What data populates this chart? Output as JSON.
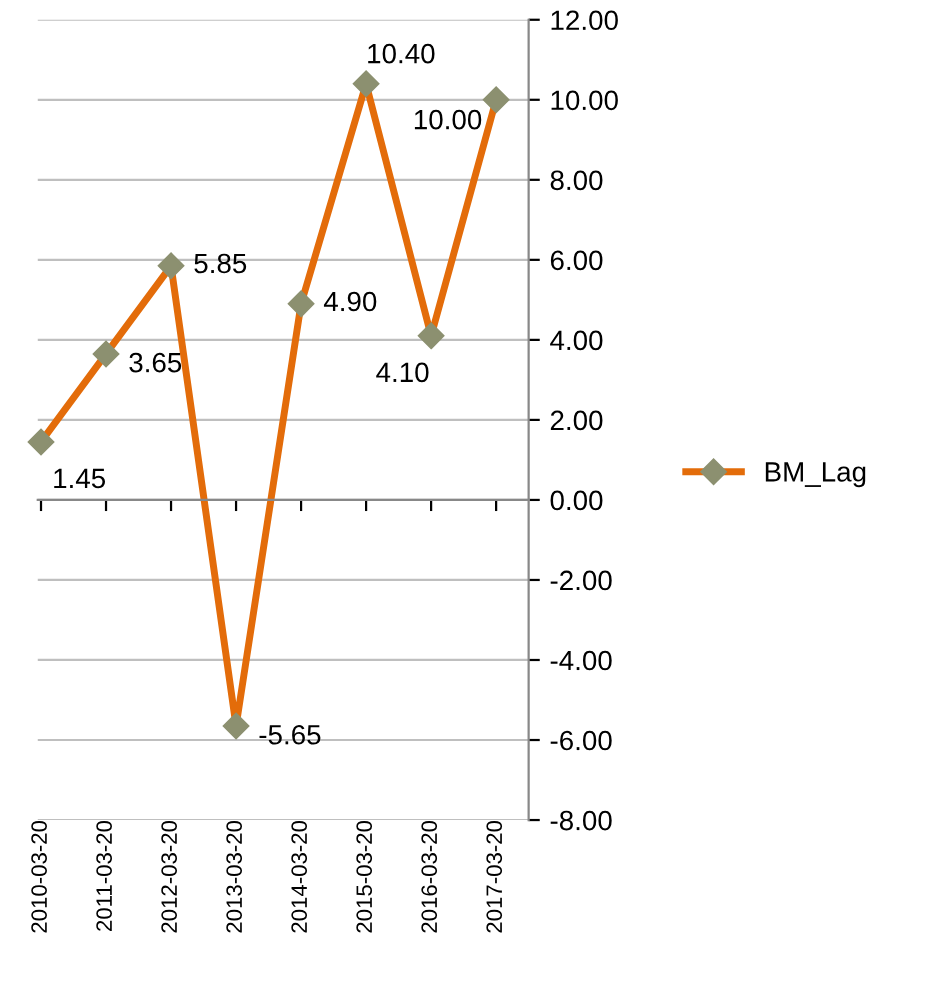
{
  "chart_data": {
    "type": "line",
    "categories": [
      "2010-03-20",
      "2011-03-20",
      "2012-03-20",
      "2013-03-20",
      "2014-03-20",
      "2015-03-20",
      "2016-03-20",
      "2017-03-20"
    ],
    "series": [
      {
        "name": "BM_Lag",
        "color": "#e36c0a",
        "values": [
          1.45,
          3.65,
          5.85,
          -5.65,
          4.9,
          10.4,
          4.1,
          10.0
        ],
        "value_labels": [
          "1.45",
          "3.65",
          "5.85",
          "-5.65",
          "4.90",
          "10.40",
          "4.10",
          "10.00"
        ]
      }
    ],
    "ylim": [
      -8,
      12
    ],
    "yticks": [
      {
        "value": -8,
        "label": "-8.00"
      },
      {
        "value": -6,
        "label": "-6.00"
      },
      {
        "value": -4,
        "label": "-4.00"
      },
      {
        "value": -2,
        "label": "-2.00"
      },
      {
        "value": 0,
        "label": "0.00"
      },
      {
        "value": 2,
        "label": "2.00"
      },
      {
        "value": 4,
        "label": "4.00"
      },
      {
        "value": 6,
        "label": "6.00"
      },
      {
        "value": 8,
        "label": "8.00"
      },
      {
        "value": 10,
        "label": "10.00"
      },
      {
        "value": 12,
        "label": "12.00"
      }
    ],
    "grid": "y",
    "legend": "right",
    "marker": "diamond"
  }
}
